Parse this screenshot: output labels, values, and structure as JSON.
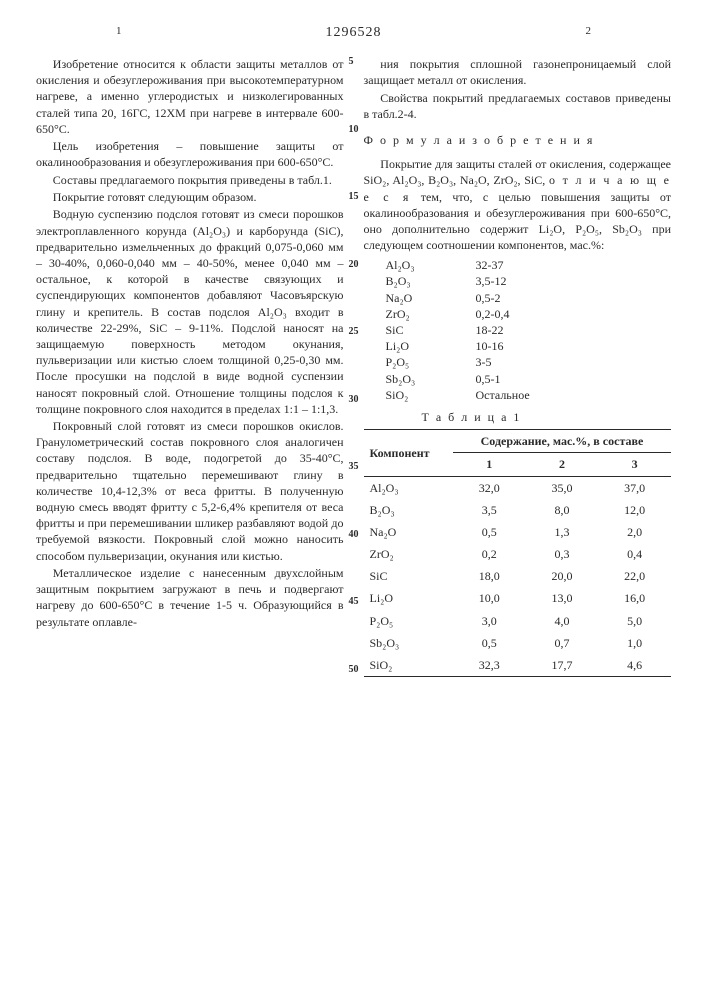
{
  "header": {
    "left_page": "1",
    "patent_number": "1296528",
    "right_page": "2",
    "line_markers": [
      "5",
      "10",
      "15",
      "20",
      "25",
      "30",
      "35",
      "40",
      "45",
      "50"
    ]
  },
  "left_col": {
    "p1": "Изобретение относится к области защиты металлов от окисления и обезуглероживания при высокотемпературном нагреве, а именно углеродистых и низколегированных сталей типа 20, 16ГС, 12ХМ при нагреве в интервале 600-650°С.",
    "p2": "Цель изобретения – повышение защиты от окалинообразования и обезуглероживания при 600-650°С.",
    "p3": "Составы предлагаемого покрытия приведены в табл.1.",
    "p4": "Покрытие готовят следующим образом.",
    "p5": "Водную суспензию подслоя готовят из смеси порошков электроплавленного корунда (Al₂O₃) и карборунда (SiC), предварительно измельченных до фракций 0,075-0,060 мм – 30-40%, 0,060-0,040 мм – 40-50%, менее 0,040 мм – остальное, к которой в качестве связующих и суспендирующих компонентов добавляют Часовъярскую глину и крепитель. В состав подслоя Al₂O₃ входит в количестве 22-29%, SiC – 9-11%. Подслой наносят на защищаемую поверхность методом окунания, пульверизации или кистью слоем толщиной 0,25-0,30 мм. После просушки на подслой в виде водной суспензии наносят покровный слой. Отношение толщины подслоя к толщине покровного слоя находится в пределах 1:1 – 1:1,3.",
    "p6": "Покровный слой готовят из смеси порошков окислов. Гранулометрический состав покровного слоя аналогичен составу подслоя. В воде, подогретой до 35-40°С, предварительно тщательно перемешивают глину в количестве 10,4-12,3% от веса фритты. В полученную водную смесь вводят фритту с 5,2-6,4% крепителя от веса фритты и при перемешивании шликер разбавляют водой до требуемой вязкости. Покровный слой можно наносить способом пульверизации, окунания или кистью.",
    "p7": "Металлическое изделие с нанесенным двухслойным защитным покрытием загружают в печь и подвергают нагреву до 600-650°С в течение 1-5 ч. Образующийся в результате оплавле-"
  },
  "right_col": {
    "p1": "ния покрытия сплошной газонепроницаемый слой защищает металл от окисления.",
    "p2": "Свойства покрытий предлагаемых составов приведены в табл.2-4.",
    "formula_title": "Ф о р м у л а  и з о б р е т е н и я",
    "p3a": "Покрытие для защиты сталей от окисления, содержащее SiO₂, Al₂O₃, B₂O₃, Na₂O, ZrO₂, SiC, ",
    "p3b": "о т л и ч а ю щ е е с я",
    "p3c": " тем, что, с целью повышения защиты от окалинообразования и обезуглероживания при 600-650°С, оно дополнительно содержит Li₂O, P₂O₅, Sb₂O₃ при следующем соотношении компонентов, мас.%:",
    "components": [
      {
        "name": "Al₂O₃",
        "val": "32-37"
      },
      {
        "name": "B₂O₃",
        "val": "3,5-12"
      },
      {
        "name": "Na₂O",
        "val": "0,5-2"
      },
      {
        "name": "ZrO₂",
        "val": "0,2-0,4"
      },
      {
        "name": "SiC",
        "val": "18-22"
      },
      {
        "name": "Li₂O",
        "val": "10-16"
      },
      {
        "name": "P₂O₅",
        "val": "3-5"
      },
      {
        "name": "Sb₂O₃",
        "val": "0,5-1"
      },
      {
        "name": "SiO₂",
        "val": "Остальное"
      }
    ],
    "table_title": "Т а б л и ц а  1",
    "table": {
      "h_component": "Компонент",
      "h_content": "Содержание, мас.%, в составе",
      "cols": [
        "1",
        "2",
        "3"
      ],
      "rows": [
        {
          "c": "Al₂O₃",
          "v": [
            "32,0",
            "35,0",
            "37,0"
          ]
        },
        {
          "c": "B₂O₃",
          "v": [
            "3,5",
            "8,0",
            "12,0"
          ]
        },
        {
          "c": "Na₂O",
          "v": [
            "0,5",
            "1,3",
            "2,0"
          ]
        },
        {
          "c": "ZrO₂",
          "v": [
            "0,2",
            "0,3",
            "0,4"
          ]
        },
        {
          "c": "SiC",
          "v": [
            "18,0",
            "20,0",
            "22,0"
          ]
        },
        {
          "c": "Li₂O",
          "v": [
            "10,0",
            "13,0",
            "16,0"
          ]
        },
        {
          "c": "P₂O₅",
          "v": [
            "3,0",
            "4,0",
            "5,0"
          ]
        },
        {
          "c": "Sb₂O₃",
          "v": [
            "0,5",
            "0,7",
            "1,0"
          ]
        },
        {
          "c": "SiO₂",
          "v": [
            "32,3",
            "17,7",
            "4,6"
          ]
        }
      ]
    }
  }
}
